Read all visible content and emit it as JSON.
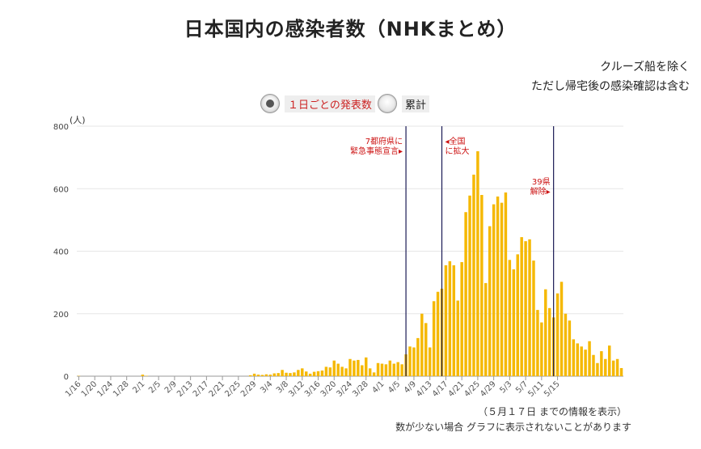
{
  "title": "日本国内の感染者数（NHKまとめ）",
  "notes": [
    "クルーズ船を除く",
    "ただし帰宅後の感染確認は含む"
  ],
  "toggle": {
    "daily_label": "１日ごとの発表数",
    "cumulative_label": "累計",
    "selected": "daily"
  },
  "footnotes": [
    "（５月１７日 までの情報を表示）",
    "数が少ない場合 グラフに表示されないことがあります"
  ],
  "colors": {
    "bar": "#f5b800",
    "grid": "#e6e6e6",
    "axis": "#999999",
    "marker": "#1a1a55",
    "annotation": "#cc1111"
  },
  "chart_data": {
    "type": "bar",
    "ylabel": "(人)",
    "ylim": [
      0,
      800
    ],
    "yticks": [
      0,
      200,
      400,
      600,
      800
    ],
    "grid": true,
    "start_date": "1/16",
    "xtick_labels": [
      "1/16",
      "1/20",
      "1/24",
      "1/28",
      "2/1",
      "2/5",
      "2/9",
      "2/13",
      "2/17",
      "2/21",
      "2/25",
      "2/29",
      "3/4",
      "3/8",
      "3/12",
      "3/16",
      "3/20",
      "3/24",
      "3/28",
      "4/1",
      "4/5",
      "4/9",
      "4/13",
      "4/17",
      "4/21",
      "4/25",
      "4/29",
      "5/3",
      "5/7",
      "5/11",
      "5/15"
    ],
    "values": [
      1,
      0,
      0,
      0,
      0,
      0,
      0,
      0,
      0,
      0,
      0,
      0,
      0,
      0,
      0,
      0,
      5,
      1,
      0,
      0,
      0,
      0,
      0,
      0,
      0,
      0,
      0,
      0,
      0,
      0,
      0,
      0,
      0,
      0,
      0,
      0,
      0,
      0,
      0,
      0,
      0,
      0,
      0,
      3,
      8,
      5,
      4,
      6,
      5,
      9,
      10,
      20,
      11,
      10,
      12,
      20,
      25,
      15,
      8,
      14,
      16,
      18,
      30,
      28,
      50,
      40,
      30,
      25,
      55,
      50,
      52,
      35,
      60,
      25,
      12,
      42,
      40,
      38,
      50,
      40,
      45,
      38,
      70,
      95,
      92,
      122,
      200,
      170,
      92,
      240,
      270,
      280,
      355,
      368,
      355,
      242,
      365,
      525,
      578,
      645,
      720,
      580,
      298,
      480,
      550,
      575,
      555,
      588,
      372,
      342,
      390,
      445,
      432,
      438,
      370,
      212,
      172,
      278,
      218,
      188,
      265,
      302,
      200,
      178,
      118,
      105,
      95,
      85,
      112,
      68,
      42,
      80,
      55,
      98,
      50,
      55,
      26
    ]
  },
  "annotations": [
    {
      "date": "4/7",
      "lines": [
        "7都府県に",
        "緊急事態宣言▸"
      ],
      "side": "left"
    },
    {
      "date": "4/16",
      "lines": [
        "◂全国",
        "に拡大"
      ],
      "side": "right"
    },
    {
      "date": "5/14",
      "lines": [
        "39県",
        "解除▸"
      ],
      "side": "left"
    }
  ]
}
